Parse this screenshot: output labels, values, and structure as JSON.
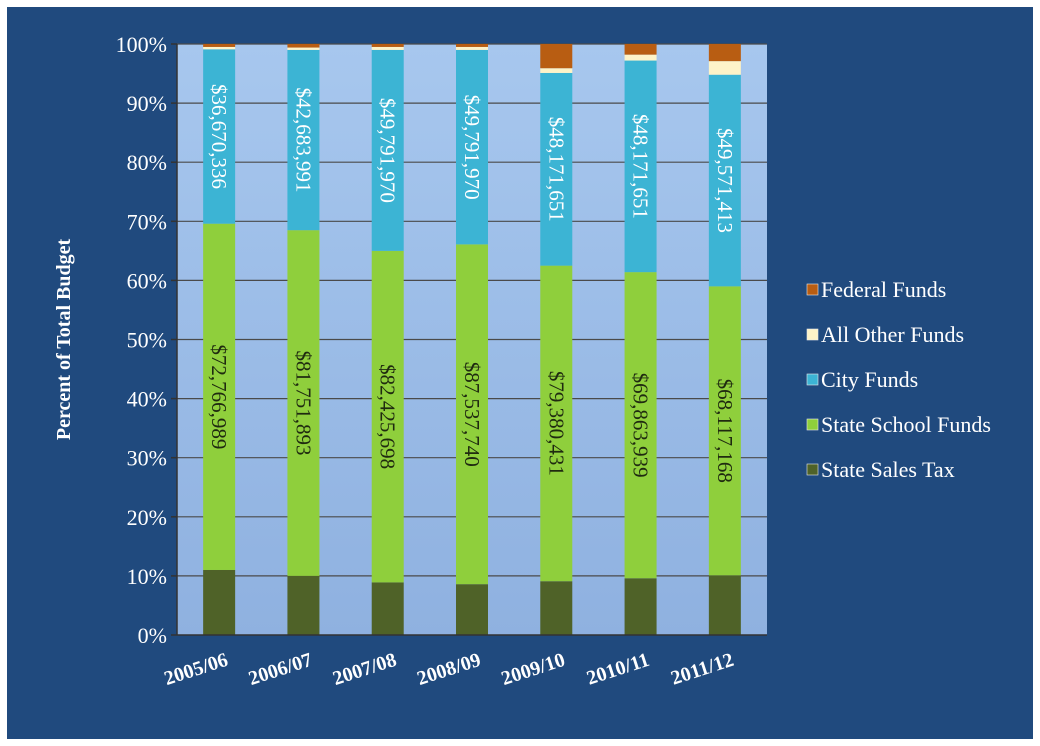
{
  "chart_data": {
    "type": "bar",
    "stacked": "percent",
    "ylabel": "Percent of Total Budget",
    "xlabel": "",
    "ylim": [
      0,
      100
    ],
    "yticks": [
      "0%",
      "10%",
      "20%",
      "30%",
      "40%",
      "50%",
      "60%",
      "70%",
      "80%",
      "90%",
      "100%"
    ],
    "grid": true,
    "legend_position": "right",
    "categories": [
      "2005/06",
      "2006/07",
      "2007/08",
      "2008/09",
      "2009/10",
      "2010/11",
      "2011/12"
    ],
    "series": [
      {
        "name": "State Sales Tax",
        "color": "#4f6228",
        "values": [
          11.0,
          10.0,
          8.9,
          8.6,
          9.1,
          9.6,
          10.1
        ],
        "labels": []
      },
      {
        "name": "State School Funds",
        "color": "#8fcf3c",
        "values": [
          58.6,
          58.5,
          56.1,
          57.5,
          53.4,
          51.8,
          48.9
        ],
        "labels": [
          "$72,766,989",
          "$81,751,893",
          "$82,425,698",
          "$87,537,740",
          "$79,380,431",
          "$69,863,939",
          "$68,117,168"
        ]
      },
      {
        "name": "City Funds",
        "color": "#3cb4d4",
        "values": [
          29.5,
          30.5,
          34.0,
          32.9,
          32.6,
          35.8,
          35.8
        ],
        "labels": [
          "$36,670,336",
          "$42,683,991",
          "$49,791,970",
          "$49,791,970",
          "$48,171,651",
          "$48,171,651",
          "$49,571,413"
        ]
      },
      {
        "name": "All Other Funds",
        "color": "#fdf3c8",
        "values": [
          0.4,
          0.4,
          0.5,
          0.5,
          0.8,
          1.0,
          2.3
        ],
        "labels": []
      },
      {
        "name": "Federal Funds",
        "color": "#b85d12",
        "values": [
          0.5,
          0.6,
          0.5,
          0.5,
          4.1,
          1.8,
          2.9
        ],
        "labels": []
      }
    ],
    "legend_order": [
      "Federal Funds",
      "All Other Funds",
      "City Funds",
      "State School Funds",
      "State Sales Tax"
    ]
  }
}
